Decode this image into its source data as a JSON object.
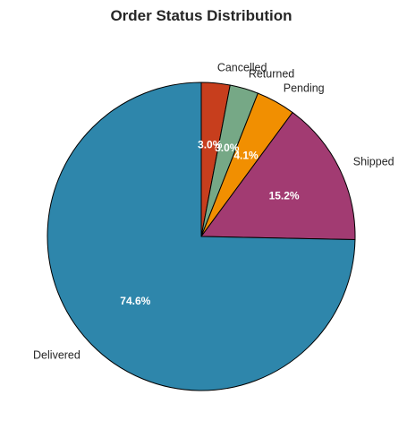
{
  "chart_data": {
    "type": "pie",
    "title": "Order Status Distribution",
    "start_angle_deg": 90,
    "direction": "clockwise",
    "slices": [
      {
        "label": "Cancelled",
        "value": 3.0,
        "pct_label": "3.0%",
        "color": "#C73E1D"
      },
      {
        "label": "Returned",
        "value": 3.0,
        "pct_label": "3.0%",
        "color": "#76A886"
      },
      {
        "label": "Pending",
        "value": 4.1,
        "pct_label": "4.1%",
        "color": "#F18F01"
      },
      {
        "label": "Shipped",
        "value": 15.2,
        "pct_label": "15.2%",
        "color": "#A23B72"
      },
      {
        "label": "Delivered",
        "value": 74.6,
        "pct_label": "74.6%",
        "color": "#2E86AB"
      }
    ]
  }
}
